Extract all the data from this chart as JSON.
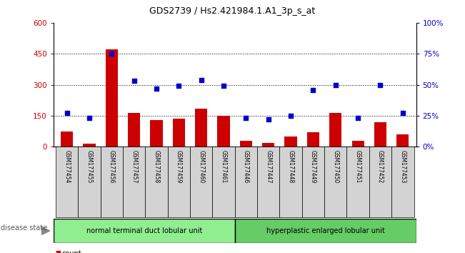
{
  "title": "GDS2739 / Hs2.421984.1.A1_3p_s_at",
  "samples": [
    "GSM177454",
    "GSM177455",
    "GSM177456",
    "GSM177457",
    "GSM177458",
    "GSM177459",
    "GSM177460",
    "GSM177461",
    "GSM177446",
    "GSM177447",
    "GSM177448",
    "GSM177449",
    "GSM177450",
    "GSM177451",
    "GSM177452",
    "GSM177453"
  ],
  "counts": [
    75,
    15,
    470,
    165,
    130,
    135,
    185,
    150,
    30,
    20,
    50,
    70,
    165,
    30,
    120,
    60
  ],
  "percentiles": [
    27,
    23,
    75,
    53,
    47,
    49,
    54,
    49,
    23,
    22,
    25,
    46,
    50,
    23,
    50,
    27
  ],
  "group1_label": "normal terminal duct lobular unit",
  "group2_label": "hyperplastic enlarged lobular unit",
  "group1_count": 8,
  "group2_count": 8,
  "bar_color": "#cc0000",
  "dot_color": "#0000cc",
  "ylim_left": [
    0,
    600
  ],
  "ylim_right": [
    0,
    100
  ],
  "yticks_left": [
    0,
    150,
    300,
    450,
    600
  ],
  "yticks_right": [
    0,
    25,
    50,
    75,
    100
  ],
  "left_tick_color": "#cc0000",
  "right_tick_color": "#0000cc",
  "background_color": "#ffffff",
  "plot_bg_color": "#ffffff",
  "group1_bg": "#90ee90",
  "group2_bg": "#66cc66",
  "legend_count_color": "#cc0000",
  "legend_pct_color": "#0000cc",
  "disease_state_label": "disease state",
  "xticklabel_bg": "#d3d3d3",
  "grid_dotted_at": [
    150,
    300,
    450
  ],
  "bar_width": 0.55
}
